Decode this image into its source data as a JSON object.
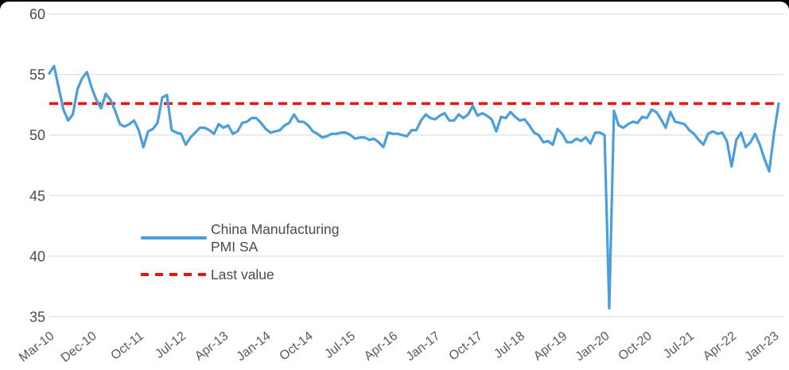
{
  "page": {
    "background": "#ffffff",
    "top_frame_color": "#000000"
  },
  "legend": {
    "series_label": "China Manufacturing PMI SA",
    "last_value_label": "Last value"
  },
  "colors": {
    "series": "#4a9eda",
    "reference": "#ee1212",
    "gridline": "#d9d9d9",
    "y_tick_text": "#4d4d4d",
    "x_tick_text": "#595959"
  },
  "chart_data": {
    "type": "line",
    "title": "",
    "xlabel": "",
    "ylabel": "",
    "frequency": "monthly",
    "x_start": "Mar-10",
    "x_end": "Feb-23",
    "ylim": [
      35,
      60
    ],
    "yticks": [
      35,
      40,
      45,
      50,
      55,
      60
    ],
    "grid": "horizontal",
    "legend_position": "inside-bottom-left",
    "xticks": [
      {
        "label": "Mar-10",
        "month_index": 0
      },
      {
        "label": "Dec-10",
        "month_index": 9
      },
      {
        "label": "Oct-11",
        "month_index": 19
      },
      {
        "label": "Jul-12",
        "month_index": 28
      },
      {
        "label": "Apr-13",
        "month_index": 37
      },
      {
        "label": "Jan-14",
        "month_index": 46
      },
      {
        "label": "Oct-14",
        "month_index": 55
      },
      {
        "label": "Jul-15",
        "month_index": 64
      },
      {
        "label": "Apr-16",
        "month_index": 73
      },
      {
        "label": "Jan-17",
        "month_index": 82
      },
      {
        "label": "Oct-17",
        "month_index": 91
      },
      {
        "label": "Jul-18",
        "month_index": 100
      },
      {
        "label": "Apr-19",
        "month_index": 109
      },
      {
        "label": "Jan-20",
        "month_index": 118
      },
      {
        "label": "Oct-20",
        "month_index": 127
      },
      {
        "label": "Jul-21",
        "month_index": 136
      },
      {
        "label": "Apr-22",
        "month_index": 145
      },
      {
        "label": "Jan-23",
        "month_index": 154
      }
    ],
    "series": [
      {
        "name": "China Manufacturing PMI SA",
        "color": "#4a9eda",
        "values": [
          55.1,
          55.7,
          53.9,
          52.1,
          51.2,
          51.7,
          53.8,
          54.7,
          55.2,
          53.9,
          52.9,
          52.2,
          53.4,
          52.9,
          52.0,
          50.9,
          50.7,
          50.9,
          51.2,
          50.4,
          49.0,
          50.3,
          50.5,
          51.0,
          53.1,
          53.3,
          50.4,
          50.2,
          50.1,
          49.2,
          49.8,
          50.2,
          50.6,
          50.6,
          50.4,
          50.1,
          50.9,
          50.6,
          50.8,
          50.1,
          50.3,
          51.0,
          51.1,
          51.4,
          51.4,
          51.0,
          50.5,
          50.2,
          50.3,
          50.4,
          50.8,
          51.0,
          51.7,
          51.1,
          51.1,
          50.8,
          50.3,
          50.1,
          49.8,
          49.9,
          50.1,
          50.1,
          50.2,
          50.2,
          50.0,
          49.7,
          49.8,
          49.8,
          49.6,
          49.7,
          49.4,
          49.0,
          50.2,
          50.1,
          50.1,
          50.0,
          49.9,
          50.4,
          50.4,
          51.2,
          51.7,
          51.4,
          51.3,
          51.6,
          51.8,
          51.2,
          51.2,
          51.7,
          51.4,
          51.7,
          52.4,
          51.6,
          51.8,
          51.6,
          51.3,
          50.3,
          51.5,
          51.4,
          51.9,
          51.5,
          51.2,
          51.3,
          50.8,
          50.2,
          50.0,
          49.4,
          49.5,
          49.2,
          50.5,
          50.1,
          49.4,
          49.4,
          49.7,
          49.5,
          49.8,
          49.3,
          50.2,
          50.2,
          50.0,
          35.7,
          52.0,
          50.8,
          50.6,
          50.9,
          51.1,
          51.0,
          51.5,
          51.4,
          52.1,
          51.9,
          51.3,
          50.6,
          51.9,
          51.1,
          51.0,
          50.9,
          50.4,
          50.1,
          49.6,
          49.2,
          50.1,
          50.3,
          50.1,
          50.2,
          49.5,
          47.4,
          49.6,
          50.2,
          49.0,
          49.4,
          50.1,
          49.2,
          48.0,
          47.0,
          50.1,
          52.6
        ]
      }
    ],
    "reference_line": {
      "name": "Last value",
      "value": 52.6,
      "color": "#ee1212",
      "style": "dashed"
    }
  }
}
